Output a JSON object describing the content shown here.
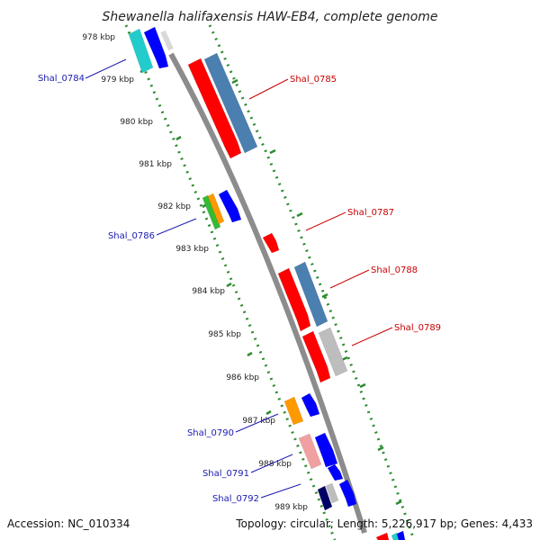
{
  "title": "Shewanella halifaxensis HAW-EB4, complete genome",
  "accession": "Accession: NC_010334",
  "summary": "Topology: circular; Length: 5,226,917 bp; Genes: 4,433",
  "colors": {
    "backbone": "#8c8c8c",
    "ruler": "#2e8b2e",
    "label_left": "#1a1ab0",
    "label_right": "#c80000",
    "red": "#ff0000",
    "steel": "#4a7fb0",
    "blue": "#0000ff",
    "cyan": "#22cccc",
    "green": "#33bb33",
    "orange": "#ff9900",
    "pink": "#f0a0a0",
    "gray": "#bdbdbd",
    "navy": "#000066"
  },
  "ruler_labels": [
    "978 kbp",
    "979 kbp",
    "980 kbp",
    "981 kbp",
    "982 kbp",
    "983 kbp",
    "984 kbp",
    "985 kbp",
    "986 kbp",
    "987 kbp",
    "988 kbp",
    "989 kbp"
  ],
  "gene_labels": [
    {
      "text": "Shal_0784",
      "side": "left"
    },
    {
      "text": "Shal_0785",
      "side": "right"
    },
    {
      "text": "Shal_0786",
      "side": "left"
    },
    {
      "text": "Shal_0787",
      "side": "right"
    },
    {
      "text": "Shal_0788",
      "side": "right"
    },
    {
      "text": "Shal_0789",
      "side": "right"
    },
    {
      "text": "Shal_0790",
      "side": "left"
    },
    {
      "text": "Shal_0791",
      "side": "left"
    },
    {
      "text": "Shal_0792",
      "side": "left"
    }
  ]
}
